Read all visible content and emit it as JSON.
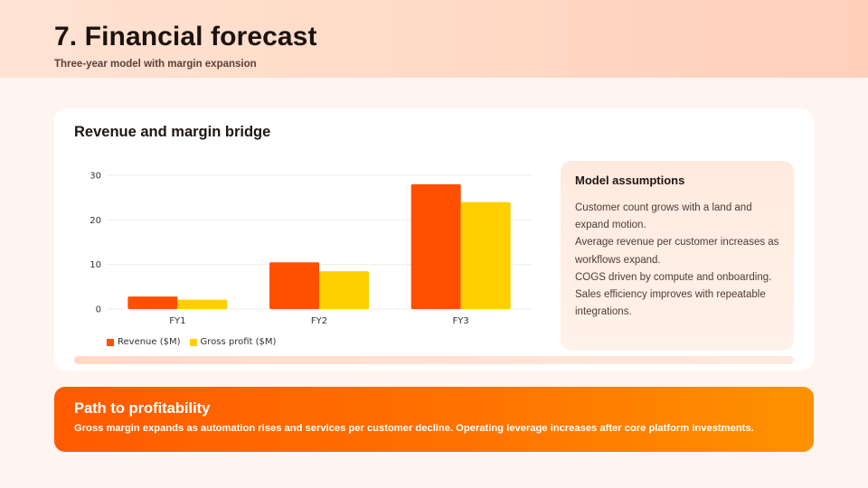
{
  "header": {
    "title": "7. Financial forecast",
    "subtitle": "Three-year model with margin expansion"
  },
  "card": {
    "title": "Revenue and margin bridge",
    "progress_fraction": 1.0
  },
  "assumptions": {
    "title": "Model assumptions",
    "items": [
      "Customer count grows with a land and expand motion.",
      "Average revenue per customer increases as workflows expand.",
      "COGS driven by compute and onboarding.",
      "Sales efficiency improves with repeatable integrations."
    ]
  },
  "banner": {
    "title": "Path to profitability",
    "text": "Gross margin expands as automation rises and services per customer decline. Operating leverage increases after core platform investments."
  },
  "chart_data": {
    "type": "bar",
    "title": "",
    "xlabel": "",
    "ylabel": "",
    "categories": [
      "FY1",
      "FY2",
      "FY3"
    ],
    "series": [
      {
        "name": "Revenue ($M)",
        "values": [
          2.8,
          10.5,
          28
        ],
        "color": "#ff5000"
      },
      {
        "name": "Gross profit ($M)",
        "values": [
          2.1,
          8.5,
          24
        ],
        "color": "#ffcf00"
      }
    ],
    "ylim": [
      0,
      30
    ],
    "yticks": [
      0,
      10,
      20,
      30
    ],
    "grid": true,
    "legend_position": "bottom-left"
  }
}
